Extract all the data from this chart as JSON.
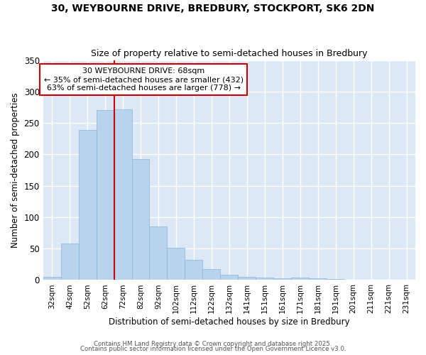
{
  "title_line1": "30, WEYBOURNE DRIVE, BREDBURY, STOCKPORT, SK6 2DN",
  "title_line2": "Size of property relative to semi-detached houses in Bredbury",
  "xlabel": "Distribution of semi-detached houses by size in Bredbury",
  "ylabel": "Number of semi-detached properties",
  "categories": [
    "32sqm",
    "42sqm",
    "52sqm",
    "62sqm",
    "72sqm",
    "82sqm",
    "92sqm",
    "102sqm",
    "112sqm",
    "122sqm",
    "132sqm",
    "141sqm",
    "151sqm",
    "161sqm",
    "171sqm",
    "181sqm",
    "191sqm",
    "201sqm",
    "211sqm",
    "221sqm",
    "231sqm"
  ],
  "values": [
    5,
    58,
    239,
    270,
    272,
    192,
    85,
    51,
    32,
    17,
    8,
    5,
    4,
    3,
    4,
    3,
    2,
    0,
    0,
    1,
    1
  ],
  "bar_color": "#b8d4ed",
  "bar_edge_color": "#8ab4d8",
  "property_line_color": "#cc0000",
  "annotation_text": "30 WEYBOURNE DRIVE: 68sqm\n← 35% of semi-detached houses are smaller (432)\n63% of semi-detached houses are larger (778) →",
  "annotation_box_color": "#cc0000",
  "ylim": [
    0,
    350
  ],
  "yticks": [
    0,
    50,
    100,
    150,
    200,
    250,
    300,
    350
  ],
  "background_color": "#dce8f5",
  "fig_background_color": "#ffffff",
  "grid_color": "#ffffff",
  "footer_line1": "Contains HM Land Registry data © Crown copyright and database right 2025.",
  "footer_line2": "Contains public sector information licensed under the Open Government Licence v3.0."
}
